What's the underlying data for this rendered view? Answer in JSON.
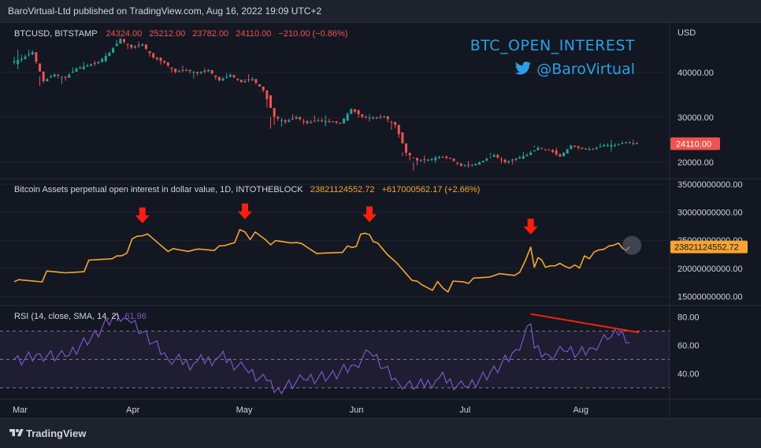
{
  "header": {
    "publisher": "BaroVirtual-Ltd published on TradingView.com, Aug 16, 2022 19:09 UTC+2"
  },
  "footer": {
    "logo_text": "TradingView"
  },
  "colors": {
    "background": "#131722",
    "grid": "#2a2e39",
    "text": "#d1d4dc",
    "up": "#26a69a",
    "down": "#ef5350",
    "oi": "#f7a530",
    "rsi": "#7e57c2",
    "arrow": "#ff1e0e",
    "brand": "#2aa0e6"
  },
  "branding": {
    "title": "BTC_OPEN_INTEREST",
    "handle": "@BaroVirtual",
    "icon": "twitter-bird-icon"
  },
  "price_pane": {
    "symbol": "BTCUSD, BITSTAMP",
    "open": "24324.00",
    "high": "25212.00",
    "low": "23782.00",
    "close": "24110.00",
    "change": "−210.00 (−0.86%)",
    "currency": "USD",
    "last_price_label": "24110.00"
  },
  "oi_pane": {
    "title": "Bitcoin Assets perpetual open interest in dollar value, 1D, INTOTHEBLOCK",
    "value": "23821124552.72",
    "change": "+617000562.17 (+2.66%)",
    "last_value_label": "23821124552.72"
  },
  "rsi_pane": {
    "title": "RSI (14, close, SMA, 14, 2)",
    "value": "61.96"
  },
  "chart_data": [
    {
      "type": "candlestick",
      "title": "BTCUSD, BITSTAMP",
      "y_ticks": [
        20000,
        30000,
        40000
      ],
      "y_tick_labels": [
        "20000.00",
        "30000.00",
        "40000.00"
      ],
      "ylim": [
        16500,
        51000
      ],
      "x": [
        "Mar 1",
        "Mar 4",
        "Mar 7",
        "Mar 10",
        "Mar 13",
        "Mar 16",
        "Mar 19",
        "Mar 22",
        "Mar 25",
        "Mar 28",
        "Mar 31",
        "Apr 3",
        "Apr 6",
        "Apr 9",
        "Apr 12",
        "Apr 15",
        "Apr 18",
        "Apr 21",
        "Apr 24",
        "Apr 27",
        "Apr 30",
        "May 3",
        "May 6",
        "May 9",
        "May 12",
        "May 15",
        "May 18",
        "May 21",
        "May 24",
        "May 27",
        "May 30",
        "Jun 2",
        "Jun 5",
        "Jun 8",
        "Jun 11",
        "Jun 14",
        "Jun 17",
        "Jun 20",
        "Jun 23",
        "Jun 26",
        "Jun 29",
        "Jul 2",
        "Jul 5",
        "Jul 8",
        "Jul 11",
        "Jul 14",
        "Jul 17",
        "Jul 20",
        "Jul 23",
        "Jul 26",
        "Jul 29",
        "Aug 1",
        "Aug 4",
        "Aug 7",
        "Aug 10",
        "Aug 13",
        "Aug 16"
      ],
      "close": [
        43000,
        44500,
        38000,
        39500,
        38800,
        40800,
        41500,
        42300,
        44300,
        47400,
        45500,
        46200,
        43300,
        42200,
        40100,
        40500,
        39800,
        40500,
        38200,
        39400,
        37800,
        38500,
        36000,
        30100,
        29000,
        30000,
        28700,
        29300,
        29100,
        28600,
        31800,
        30100,
        29800,
        30200,
        28300,
        22100,
        20400,
        20500,
        21200,
        20800,
        19200,
        19300,
        20300,
        21600,
        20000,
        20800,
        21600,
        23200,
        22700,
        21300,
        23700,
        23000,
        22900,
        23800,
        23800,
        24400,
        24110
      ],
      "low": [
        41000,
        42500,
        37000,
        38000,
        37200,
        38900,
        40600,
        40900,
        42000,
        45000,
        44500,
        44900,
        42500,
        41300,
        39200,
        39800,
        38500,
        39200,
        37600,
        37800,
        37500,
        37300,
        34900,
        25500,
        27600,
        28700,
        27900,
        28700,
        28200,
        28300,
        29200,
        29300,
        29100,
        29300,
        26600,
        20100,
        17600,
        19700,
        19800,
        20500,
        18800,
        18700,
        19300,
        20800,
        19200,
        19000,
        20700,
        22500,
        22300,
        20900,
        22900,
        22500,
        22600,
        22800,
        22700,
        23800,
        23782
      ],
      "high": [
        45300,
        45500,
        39500,
        40000,
        39500,
        41700,
        42500,
        42800,
        45000,
        48200,
        47500,
        47000,
        46000,
        43400,
        42200,
        41500,
        40800,
        41100,
        40500,
        40200,
        39200,
        39700,
        37000,
        31200,
        30600,
        31000,
        30500,
        30500,
        30500,
        29200,
        32200,
        31700,
        30900,
        30700,
        30400,
        23000,
        21000,
        21300,
        21700,
        21500,
        20900,
        20100,
        20500,
        22500,
        22200,
        21000,
        22600,
        24300,
        23000,
        23300,
        24200,
        23400,
        23500,
        24500,
        24900,
        24900,
        25212
      ]
    },
    {
      "type": "line",
      "title": "Bitcoin Assets perpetual open interest in dollar value, 1D, INTOTHEBLOCK",
      "series": [
        {
          "name": "",
          "x": [
            "Mar 1",
            "Mar 15",
            "Mar 29",
            "Apr 5",
            "Apr 12",
            "Apr 19",
            "Apr 26",
            "May 3",
            "May 10",
            "May 17",
            "May 24",
            "May 31",
            "Jun 6",
            "Jun 7",
            "Jun 12",
            "Jun 19",
            "Jun 26",
            "Jul 3",
            "Jul 10",
            "Jul 17",
            "Jul 20",
            "Jul 21",
            "Jul 22",
            "Jul 24",
            "Jul 28",
            "Aug 1",
            "Aug 5",
            "Aug 9",
            "Aug 13",
            "Aug 15",
            "Aug 16"
          ],
          "values": [
            17600000000,
            19200000000,
            22200000000,
            25800000000,
            23000000000,
            23300000000,
            24000000000,
            26500000000,
            24200000000,
            24600000000,
            22700000000,
            24000000000,
            26000000000,
            24800000000,
            21800000000,
            17700000000,
            16500000000,
            17300000000,
            18700000000,
            19300000000,
            23800000000,
            20200000000,
            21900000000,
            20200000000,
            20900000000,
            20600000000,
            21700000000,
            23400000000,
            24500000000,
            23200000000,
            23821124552.72
          ]
        }
      ],
      "y_ticks": [
        15000000000,
        20000000000,
        25000000000,
        30000000000,
        35000000000
      ],
      "y_tick_labels": [
        "15000000000.00",
        "20000000000.00",
        "25000000000.00",
        "30000000000.00",
        "35000000000.00"
      ],
      "ylim": [
        13500000000,
        36000000000
      ],
      "annotations": [
        "Apr 5",
        "May 3",
        "Jun 6",
        "Jul 20"
      ]
    },
    {
      "type": "line",
      "title": "RSI (14, close, SMA, 14, 2)",
      "series": [
        {
          "name": "",
          "x": [
            "Mar 1",
            "Mar 8",
            "Mar 15",
            "Mar 22",
            "Mar 29",
            "Apr 1",
            "Apr 5",
            "Apr 12",
            "Apr 19",
            "Apr 26",
            "May 3",
            "May 9",
            "May 12",
            "May 19",
            "May 26",
            "Jun 2",
            "Jun 6",
            "Jun 10",
            "Jun 14",
            "Jun 18",
            "Jun 25",
            "Jul 2",
            "Jul 9",
            "Jul 16",
            "Jul 20",
            "Jul 21",
            "Jul 25",
            "Jul 29",
            "Aug 2",
            "Aug 6",
            "Aug 10",
            "Aug 13",
            "Aug 16"
          ],
          "values": [
            50,
            54,
            52,
            65,
            82,
            78,
            69,
            50,
            47,
            52,
            44,
            35,
            30,
            36,
            38,
            46,
            55,
            44,
            33,
            29,
            37,
            31,
            41,
            57,
            75,
            58,
            53,
            56,
            54,
            58,
            64,
            67,
            61.96
          ]
        }
      ],
      "y_ticks": [
        40,
        60,
        80
      ],
      "y_tick_labels": [
        "40.00",
        "60.00",
        "80.00"
      ],
      "levels": [
        30,
        50,
        70
      ],
      "ylim": [
        22,
        88
      ],
      "trendline": {
        "from": [
          "Jul 20",
          82
        ],
        "to": [
          "Aug 16",
          69
        ]
      }
    }
  ],
  "x_axis": {
    "labels": [
      "Mar",
      "Apr",
      "May",
      "Jun",
      "Jul",
      "Aug"
    ],
    "label_dates": [
      "Mar 1",
      "Apr 1",
      "May 1",
      "Jun 1",
      "Jul 1",
      "Aug 1"
    ]
  }
}
